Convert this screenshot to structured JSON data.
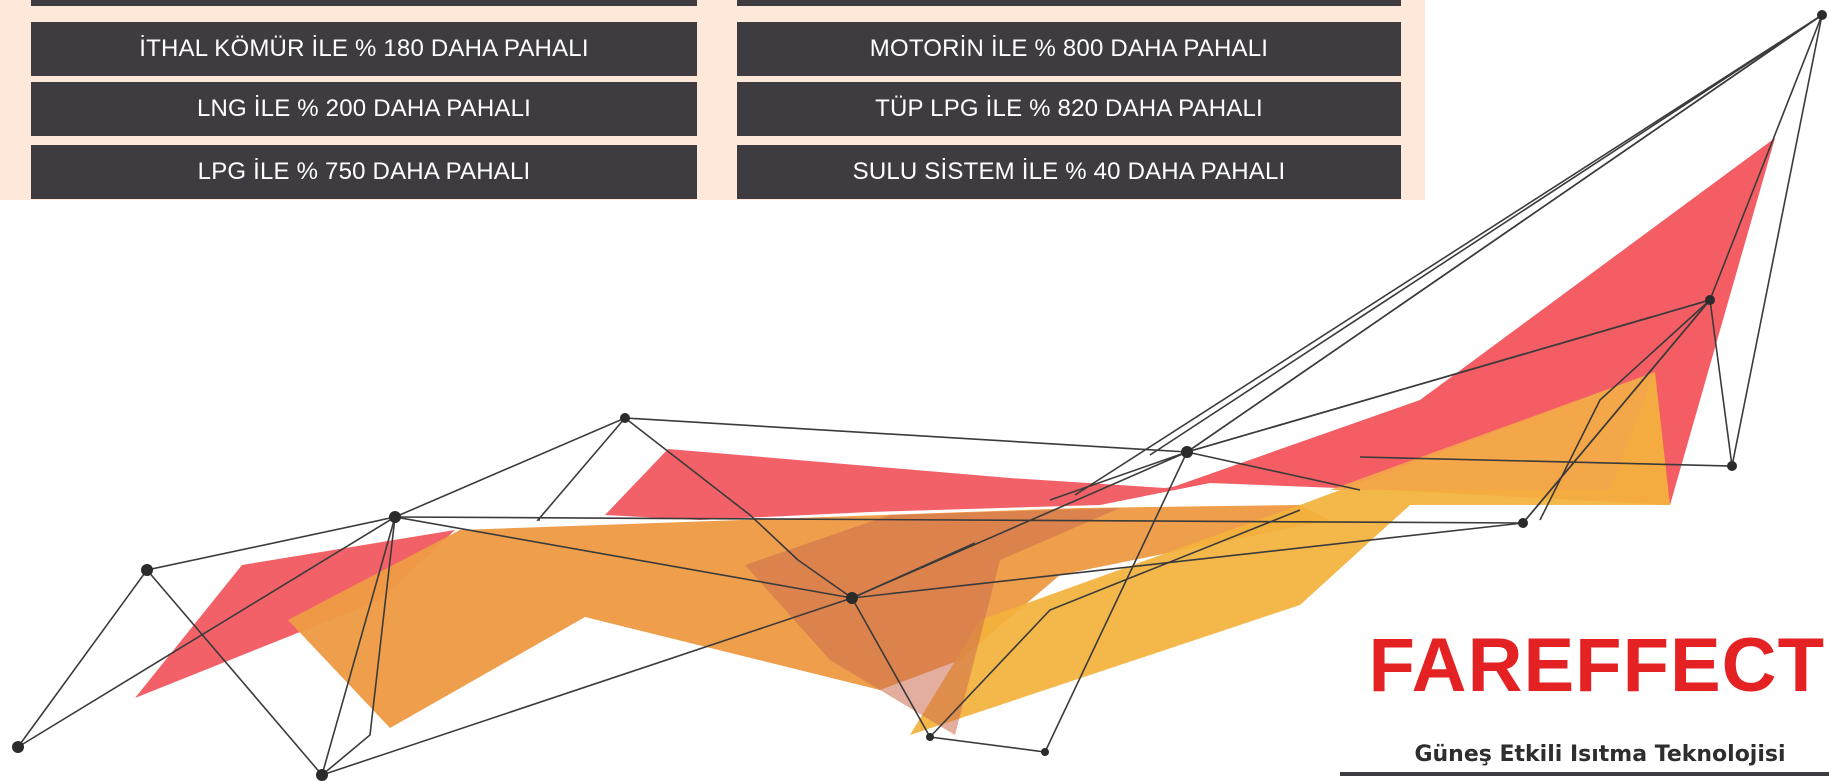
{
  "comparison": {
    "left": [
      "İTHAL KÖMÜR İLE % 180 DAHA PAHALI",
      "LNG İLE % 200 DAHA PAHALI",
      "LPG İLE % 750 DAHA PAHALI"
    ],
    "right": [
      "MOTORİN İLE % 800 DAHA PAHALI",
      "TÜP LPG İLE % 820 DAHA PAHALI",
      "SULU SİSTEM İLE % 40 DAHA PAHALI"
    ]
  },
  "brand": {
    "name": "FAREFFECT",
    "tagline": "Güneş Etkili Isıtma Teknolojisi"
  },
  "colors": {
    "panel_background": "#fde8da",
    "row_background": "#3e3c41",
    "brand_red": "#e42223",
    "shape_red": "#f2545b",
    "shape_orange": "#ee9a45",
    "shape_yellow": "#f3b13c"
  }
}
